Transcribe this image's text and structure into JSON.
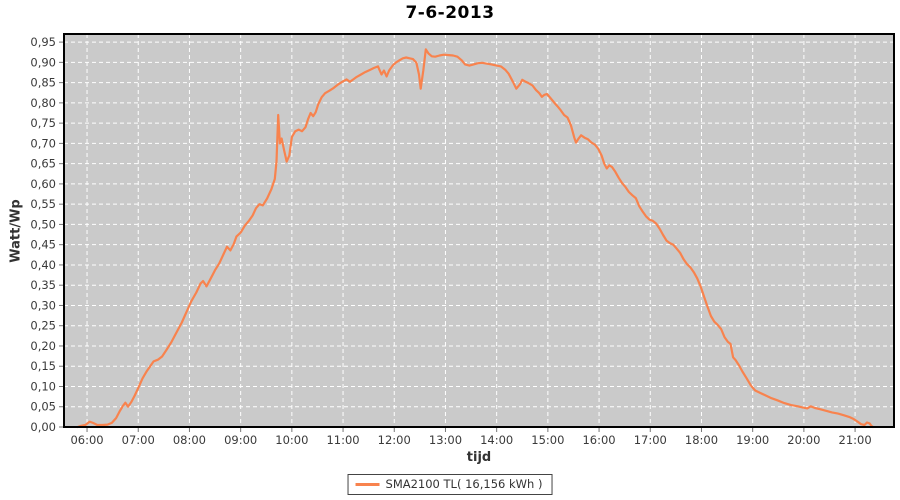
{
  "chart_data": {
    "type": "line",
    "title": "7-6-2013",
    "xlabel": "tijd",
    "ylabel": "Watt/Wp",
    "grid": true,
    "legend": {
      "label": "SMA2100 TL( 16,156 kWh )",
      "position": "bottom-center"
    },
    "x_axis": {
      "domain_hours": [
        5.55,
        21.76
      ],
      "tick_hours": [
        6,
        7,
        8,
        9,
        10,
        11,
        12,
        13,
        14,
        15,
        16,
        17,
        18,
        19,
        20,
        21
      ],
      "tick_labels": [
        "06:00",
        "07:00",
        "08:00",
        "09:00",
        "10:00",
        "11:00",
        "12:00",
        "13:00",
        "14:00",
        "15:00",
        "16:00",
        "17:00",
        "18:00",
        "19:00",
        "20:00",
        "21:00"
      ]
    },
    "y_axis": {
      "domain": [
        0,
        0.97
      ],
      "tick_values": [
        0.0,
        0.05,
        0.1,
        0.15,
        0.2,
        0.25,
        0.3,
        0.35,
        0.4,
        0.45,
        0.5,
        0.55,
        0.6,
        0.65,
        0.7,
        0.75,
        0.8,
        0.85,
        0.9,
        0.95
      ],
      "tick_labels": [
        "0,00",
        "0,05",
        "0,10",
        "0,15",
        "0,20",
        "0,25",
        "0,30",
        "0,35",
        "0,40",
        "0,45",
        "0,50",
        "0,55",
        "0,60",
        "0,65",
        "0,70",
        "0,75",
        "0,80",
        "0,85",
        "0,90",
        "0,95"
      ]
    },
    "series": [
      {
        "name": "SMA2100 TL( 16,156 kWh )",
        "color": "#F8834E",
        "points": [
          [
            "05:49",
            0.0
          ],
          [
            "05:53",
            0.003
          ],
          [
            "05:58",
            0.005
          ],
          [
            "06:03",
            0.013
          ],
          [
            "06:07",
            0.01
          ],
          [
            "06:12",
            0.005
          ],
          [
            "06:18",
            0.005
          ],
          [
            "06:24",
            0.006
          ],
          [
            "06:29",
            0.01
          ],
          [
            "06:34",
            0.022
          ],
          [
            "06:38",
            0.038
          ],
          [
            "06:42",
            0.052
          ],
          [
            "06:45",
            0.06
          ],
          [
            "06:48",
            0.05
          ],
          [
            "06:52",
            0.062
          ],
          [
            "06:56",
            0.078
          ],
          [
            "07:00",
            0.096
          ],
          [
            "07:05",
            0.12
          ],
          [
            "07:10",
            0.138
          ],
          [
            "07:14",
            0.15
          ],
          [
            "07:18",
            0.162
          ],
          [
            "07:23",
            0.166
          ],
          [
            "07:28",
            0.174
          ],
          [
            "07:33",
            0.19
          ],
          [
            "07:39",
            0.21
          ],
          [
            "07:45",
            0.234
          ],
          [
            "07:51",
            0.258
          ],
          [
            "07:57",
            0.286
          ],
          [
            "08:02",
            0.31
          ],
          [
            "08:08",
            0.332
          ],
          [
            "08:13",
            0.354
          ],
          [
            "08:16",
            0.36
          ],
          [
            "08:20",
            0.347
          ],
          [
            "08:25",
            0.367
          ],
          [
            "08:30",
            0.387
          ],
          [
            "08:35",
            0.404
          ],
          [
            "08:40",
            0.427
          ],
          [
            "08:44",
            0.445
          ],
          [
            "08:48",
            0.436
          ],
          [
            "08:52",
            0.452
          ],
          [
            "08:55",
            0.47
          ],
          [
            "09:00",
            0.48
          ],
          [
            "09:05",
            0.497
          ],
          [
            "09:10",
            0.51
          ],
          [
            "09:14",
            0.522
          ],
          [
            "09:18",
            0.54
          ],
          [
            "09:22",
            0.55
          ],
          [
            "09:26",
            0.547
          ],
          [
            "09:31",
            0.564
          ],
          [
            "09:36",
            0.587
          ],
          [
            "09:40",
            0.612
          ],
          [
            "09:42",
            0.655
          ],
          [
            "09:44",
            0.77
          ],
          [
            "09:46",
            0.7
          ],
          [
            "09:48",
            0.712
          ],
          [
            "09:51",
            0.682
          ],
          [
            "09:54",
            0.655
          ],
          [
            "09:57",
            0.67
          ],
          [
            "10:00",
            0.716
          ],
          [
            "10:04",
            0.73
          ],
          [
            "10:08",
            0.734
          ],
          [
            "10:12",
            0.73
          ],
          [
            "10:16",
            0.74
          ],
          [
            "10:19",
            0.76
          ],
          [
            "10:22",
            0.775
          ],
          [
            "10:25",
            0.767
          ],
          [
            "10:28",
            0.777
          ],
          [
            "10:31",
            0.797
          ],
          [
            "10:35",
            0.814
          ],
          [
            "10:39",
            0.824
          ],
          [
            "10:44",
            0.83
          ],
          [
            "10:49",
            0.837
          ],
          [
            "10:54",
            0.845
          ],
          [
            "10:59",
            0.852
          ],
          [
            "11:04",
            0.858
          ],
          [
            "11:08",
            0.852
          ],
          [
            "11:12",
            0.858
          ],
          [
            "11:16",
            0.864
          ],
          [
            "11:21",
            0.87
          ],
          [
            "11:26",
            0.876
          ],
          [
            "11:31",
            0.881
          ],
          [
            "11:36",
            0.886
          ],
          [
            "11:41",
            0.89
          ],
          [
            "11:45",
            0.87
          ],
          [
            "11:48",
            0.88
          ],
          [
            "11:51",
            0.865
          ],
          [
            "11:54",
            0.88
          ],
          [
            "11:58",
            0.892
          ],
          [
            "12:02",
            0.9
          ],
          [
            "12:06",
            0.905
          ],
          [
            "12:10",
            0.91
          ],
          [
            "12:14",
            0.912
          ],
          [
            "12:18",
            0.91
          ],
          [
            "12:22",
            0.908
          ],
          [
            "12:26",
            0.899
          ],
          [
            "12:29",
            0.87
          ],
          [
            "12:31",
            0.835
          ],
          [
            "12:34",
            0.88
          ],
          [
            "12:37",
            0.932
          ],
          [
            "12:40",
            0.922
          ],
          [
            "12:44",
            0.915
          ],
          [
            "12:48",
            0.914
          ],
          [
            "12:53",
            0.917
          ],
          [
            "12:58",
            0.919
          ],
          [
            "13:04",
            0.918
          ],
          [
            "13:09",
            0.917
          ],
          [
            "13:14",
            0.914
          ],
          [
            "13:19",
            0.905
          ],
          [
            "13:23",
            0.895
          ],
          [
            "13:28",
            0.892
          ],
          [
            "13:33",
            0.895
          ],
          [
            "13:38",
            0.898
          ],
          [
            "13:43",
            0.899
          ],
          [
            "13:48",
            0.897
          ],
          [
            "13:54",
            0.895
          ],
          [
            "14:00",
            0.892
          ],
          [
            "14:05",
            0.89
          ],
          [
            "14:10",
            0.882
          ],
          [
            "14:14",
            0.872
          ],
          [
            "14:19",
            0.852
          ],
          [
            "14:23",
            0.835
          ],
          [
            "14:27",
            0.845
          ],
          [
            "14:30",
            0.857
          ],
          [
            "14:34",
            0.852
          ],
          [
            "14:38",
            0.848
          ],
          [
            "14:42",
            0.843
          ],
          [
            "14:46",
            0.832
          ],
          [
            "14:50",
            0.824
          ],
          [
            "14:53",
            0.815
          ],
          [
            "14:56",
            0.82
          ],
          [
            "14:59",
            0.822
          ],
          [
            "15:03",
            0.812
          ],
          [
            "15:07",
            0.802
          ],
          [
            "15:11",
            0.792
          ],
          [
            "15:15",
            0.782
          ],
          [
            "15:19",
            0.77
          ],
          [
            "15:23",
            0.764
          ],
          [
            "15:27",
            0.745
          ],
          [
            "15:31",
            0.714
          ],
          [
            "15:33",
            0.702
          ],
          [
            "15:36",
            0.712
          ],
          [
            "15:39",
            0.72
          ],
          [
            "15:43",
            0.714
          ],
          [
            "15:47",
            0.71
          ],
          [
            "15:51",
            0.702
          ],
          [
            "15:55",
            0.697
          ],
          [
            "15:59",
            0.687
          ],
          [
            "16:03",
            0.67
          ],
          [
            "16:06",
            0.65
          ],
          [
            "16:09",
            0.638
          ],
          [
            "16:12",
            0.646
          ],
          [
            "16:15",
            0.642
          ],
          [
            "16:19",
            0.63
          ],
          [
            "16:23",
            0.615
          ],
          [
            "16:27",
            0.602
          ],
          [
            "16:31",
            0.592
          ],
          [
            "16:35",
            0.58
          ],
          [
            "16:39",
            0.572
          ],
          [
            "16:43",
            0.565
          ],
          [
            "16:47",
            0.545
          ],
          [
            "16:51",
            0.532
          ],
          [
            "16:55",
            0.52
          ],
          [
            "16:59",
            0.512
          ],
          [
            "17:03",
            0.509
          ],
          [
            "17:07",
            0.502
          ],
          [
            "17:11",
            0.489
          ],
          [
            "17:15",
            0.474
          ],
          [
            "17:19",
            0.46
          ],
          [
            "17:23",
            0.454
          ],
          [
            "17:27",
            0.45
          ],
          [
            "17:31",
            0.44
          ],
          [
            "17:35",
            0.43
          ],
          [
            "17:39",
            0.414
          ],
          [
            "17:43",
            0.402
          ],
          [
            "17:47",
            0.394
          ],
          [
            "17:51",
            0.382
          ],
          [
            "17:55",
            0.367
          ],
          [
            "17:59",
            0.347
          ],
          [
            "18:03",
            0.322
          ],
          [
            "18:07",
            0.297
          ],
          [
            "18:11",
            0.274
          ],
          [
            "18:15",
            0.26
          ],
          [
            "18:19",
            0.252
          ],
          [
            "18:23",
            0.242
          ],
          [
            "18:27",
            0.222
          ],
          [
            "18:31",
            0.21
          ],
          [
            "18:34",
            0.205
          ],
          [
            "18:37",
            0.172
          ],
          [
            "18:40",
            0.165
          ],
          [
            "18:44",
            0.152
          ],
          [
            "18:48",
            0.137
          ],
          [
            "18:53",
            0.12
          ],
          [
            "18:58",
            0.102
          ],
          [
            "19:03",
            0.09
          ],
          [
            "19:09",
            0.084
          ],
          [
            "19:15",
            0.078
          ],
          [
            "19:22",
            0.071
          ],
          [
            "19:29",
            0.066
          ],
          [
            "19:37",
            0.059
          ],
          [
            "19:45",
            0.054
          ],
          [
            "19:53",
            0.051
          ],
          [
            "19:59",
            0.048
          ],
          [
            "20:04",
            0.046
          ],
          [
            "20:08",
            0.051
          ],
          [
            "20:13",
            0.047
          ],
          [
            "20:19",
            0.044
          ],
          [
            "20:26",
            0.04
          ],
          [
            "20:33",
            0.036
          ],
          [
            "20:40",
            0.033
          ],
          [
            "20:47",
            0.029
          ],
          [
            "20:53",
            0.025
          ],
          [
            "20:58",
            0.02
          ],
          [
            "21:03",
            0.013
          ],
          [
            "21:07",
            0.007
          ],
          [
            "21:11",
            0.005
          ],
          [
            "21:14",
            0.011
          ],
          [
            "21:17",
            0.009
          ],
          [
            "21:19",
            0.003
          ],
          [
            "21:21",
            0.0
          ]
        ]
      }
    ]
  },
  "style_colors": {
    "page_background": "#FFFFFF",
    "plot_background": "#CACACA",
    "gridline": "#FFFFFF",
    "axis_border": "#000000",
    "tick_mark": "#777777",
    "tick_text": "#3A3A3A",
    "title_text": "#000000",
    "series_orange": "#F8834E"
  }
}
